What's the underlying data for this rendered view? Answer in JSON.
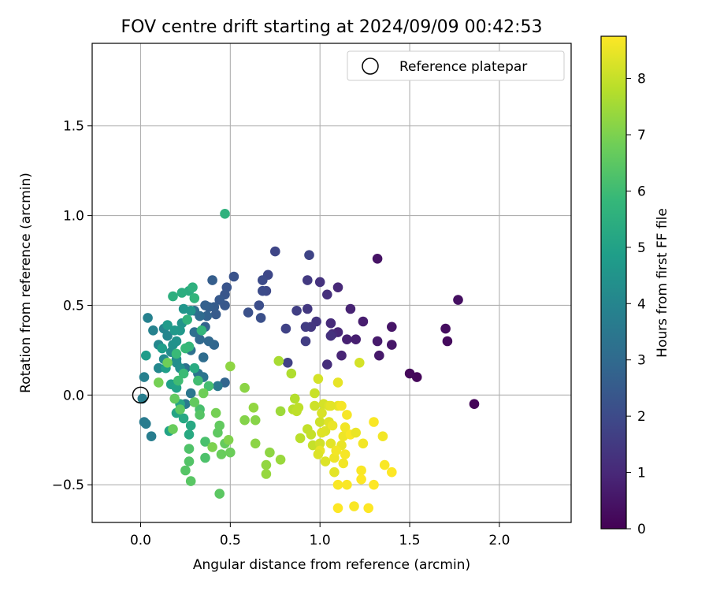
{
  "chart_data": {
    "type": "scatter",
    "title": "FOV centre drift starting at 2024/09/09 00:42:53",
    "xlabel": "Angular distance from reference (arcmin)",
    "ylabel": "Rotation from reference (arcmin)",
    "xlim": [
      -0.27,
      2.4
    ],
    "ylim": [
      -0.71,
      1.96
    ],
    "xticks": [
      "0.0",
      "0.5",
      "1.0",
      "1.5",
      "2.0"
    ],
    "xtick_values": [
      0,
      0.5,
      1.0,
      1.5,
      2.0
    ],
    "yticks": [
      "−0.5",
      "0.0",
      "0.5",
      "1.0",
      "1.5"
    ],
    "ytick_values": [
      -0.5,
      0,
      0.5,
      1.0,
      1.5
    ],
    "grid": true,
    "legend": {
      "label": "Reference platepar",
      "placement": "top-right"
    },
    "reference_point": {
      "x": 0.0,
      "y": 0.0
    },
    "colorbar": {
      "label": "Hours from first FF file",
      "range": [
        0,
        8.75
      ],
      "ticks": [
        "0",
        "1",
        "2",
        "3",
        "4",
        "5",
        "6",
        "7",
        "8"
      ],
      "tick_values": [
        0,
        1,
        2,
        3,
        4,
        5,
        6,
        7,
        8
      ],
      "colormap": [
        "#440154",
        "#482878",
        "#3e4989",
        "#31688e",
        "#26828e",
        "#1f9e89",
        "#35b779",
        "#6ece58",
        "#b5de2b",
        "#fde725"
      ]
    },
    "points": [
      [
        1.86,
        -0.05,
        0.1
      ],
      [
        1.54,
        0.1,
        0.15
      ],
      [
        1.5,
        0.12,
        0.2
      ],
      [
        1.71,
        0.3,
        0.25
      ],
      [
        1.7,
        0.37,
        0.3
      ],
      [
        1.77,
        0.53,
        0.35
      ],
      [
        1.32,
        0.76,
        0.45
      ],
      [
        1.4,
        0.38,
        0.5
      ],
      [
        1.4,
        0.28,
        0.55
      ],
      [
        1.33,
        0.22,
        0.6
      ],
      [
        1.32,
        0.3,
        0.65
      ],
      [
        1.24,
        0.41,
        0.7
      ],
      [
        1.2,
        0.31,
        0.75
      ],
      [
        1.15,
        0.31,
        0.8
      ],
      [
        1.17,
        0.48,
        0.85
      ],
      [
        1.12,
        0.22,
        0.9
      ],
      [
        1.1,
        0.35,
        0.95
      ],
      [
        1.1,
        0.6,
        1.0
      ],
      [
        1.07,
        0.34,
        1.05
      ],
      [
        1.06,
        0.4,
        1.1
      ],
      [
        1.04,
        0.17,
        1.15
      ],
      [
        1.04,
        0.56,
        1.2
      ],
      [
        1.06,
        0.33,
        1.25
      ],
      [
        1.0,
        0.63,
        1.3
      ],
      [
        0.98,
        0.41,
        1.35
      ],
      [
        0.95,
        0.38,
        1.4
      ],
      [
        0.93,
        0.48,
        1.45
      ],
      [
        0.93,
        0.64,
        1.5
      ],
      [
        0.92,
        0.38,
        1.55
      ],
      [
        0.92,
        0.3,
        1.6
      ],
      [
        0.87,
        0.47,
        1.65
      ],
      [
        0.82,
        0.18,
        1.7
      ],
      [
        0.81,
        0.37,
        1.75
      ],
      [
        0.94,
        0.78,
        1.8
      ],
      [
        0.75,
        0.8,
        1.85
      ],
      [
        0.71,
        0.67,
        1.9
      ],
      [
        0.7,
        0.58,
        1.95
      ],
      [
        0.68,
        0.64,
        2.0
      ],
      [
        0.68,
        0.58,
        2.05
      ],
      [
        0.66,
        0.5,
        2.1
      ],
      [
        0.67,
        0.43,
        2.15
      ],
      [
        0.6,
        0.46,
        2.2
      ],
      [
        0.52,
        0.66,
        2.25
      ],
      [
        0.48,
        0.6,
        2.3
      ],
      [
        0.47,
        0.56,
        2.35
      ],
      [
        0.47,
        0.5,
        2.4
      ],
      [
        0.44,
        0.53,
        2.45
      ],
      [
        0.42,
        0.45,
        2.5
      ],
      [
        0.41,
        0.49,
        2.55
      ],
      [
        0.4,
        0.64,
        2.6
      ],
      [
        0.38,
        0.49,
        2.65
      ],
      [
        0.36,
        0.5,
        2.7
      ],
      [
        0.37,
        0.44,
        2.75
      ],
      [
        0.36,
        0.38,
        2.8
      ],
      [
        0.47,
        0.07,
        2.85
      ],
      [
        0.41,
        0.28,
        2.9
      ],
      [
        0.38,
        0.3,
        2.95
      ],
      [
        0.33,
        0.31,
        3.0
      ],
      [
        0.33,
        0.44,
        3.05
      ],
      [
        0.35,
        0.21,
        3.1
      ],
      [
        0.3,
        0.47,
        3.15
      ],
      [
        0.3,
        0.35,
        3.2
      ],
      [
        0.28,
        0.25,
        3.25
      ],
      [
        0.25,
        0.15,
        3.3
      ],
      [
        0.32,
        0.12,
        3.35
      ],
      [
        0.35,
        0.1,
        3.4
      ],
      [
        0.28,
        0.01,
        3.45
      ],
      [
        0.25,
        -0.05,
        3.5
      ],
      [
        0.43,
        0.05,
        3.55
      ],
      [
        0.02,
        -0.15,
        3.6
      ],
      [
        0.03,
        -0.16,
        3.65
      ],
      [
        0.06,
        -0.23,
        3.7
      ],
      [
        0.01,
        -0.02,
        3.75
      ],
      [
        0.02,
        0.1,
        3.8
      ],
      [
        0.04,
        0.43,
        3.85
      ],
      [
        0.07,
        0.36,
        3.9
      ],
      [
        0.13,
        0.37,
        3.95
      ],
      [
        0.15,
        0.33,
        4.0
      ],
      [
        0.1,
        0.28,
        4.05
      ],
      [
        0.1,
        0.15,
        4.1
      ],
      [
        0.13,
        0.2,
        4.15
      ],
      [
        0.17,
        0.24,
        4.2
      ],
      [
        0.2,
        0.2,
        4.25
      ],
      [
        0.2,
        0.18,
        4.3
      ],
      [
        0.22,
        0.15,
        4.35
      ],
      [
        0.18,
        0.28,
        4.4
      ],
      [
        0.2,
        0.3,
        4.45
      ],
      [
        0.23,
        0.4,
        4.5
      ],
      [
        0.24,
        0.48,
        4.55
      ],
      [
        0.28,
        0.47,
        4.6
      ],
      [
        0.22,
        0.36,
        4.65
      ],
      [
        0.19,
        0.36,
        4.7
      ],
      [
        0.15,
        0.39,
        4.75
      ],
      [
        0.03,
        0.22,
        4.8
      ],
      [
        0.12,
        0.26,
        4.85
      ],
      [
        0.14,
        0.15,
        4.9
      ],
      [
        0.17,
        0.06,
        4.95
      ],
      [
        0.2,
        0.04,
        5.0
      ],
      [
        0.16,
        -0.2,
        5.05
      ],
      [
        0.2,
        -0.1,
        5.1
      ],
      [
        0.22,
        -0.05,
        5.15
      ],
      [
        0.24,
        -0.13,
        5.2
      ],
      [
        0.28,
        -0.17,
        5.25
      ],
      [
        0.27,
        -0.22,
        5.3
      ],
      [
        0.3,
        0.15,
        5.35
      ],
      [
        0.27,
        0.58,
        5.4
      ],
      [
        0.23,
        0.57,
        5.45
      ],
      [
        0.18,
        0.55,
        5.5
      ],
      [
        0.47,
        1.01,
        5.6
      ],
      [
        0.29,
        0.6,
        5.55
      ],
      [
        0.26,
        0.42,
        5.65
      ],
      [
        0.3,
        0.54,
        5.7
      ],
      [
        0.34,
        0.36,
        5.75
      ],
      [
        0.27,
        0.27,
        5.8
      ],
      [
        0.25,
        0.26,
        5.85
      ],
      [
        0.2,
        0.23,
        5.9
      ],
      [
        0.24,
        0.12,
        5.95
      ],
      [
        0.21,
        0.08,
        6.0
      ],
      [
        0.32,
        0.08,
        6.05
      ],
      [
        0.38,
        0.05,
        6.1
      ],
      [
        0.33,
        -0.08,
        6.15
      ],
      [
        0.36,
        -0.26,
        6.2
      ],
      [
        0.36,
        -0.35,
        6.25
      ],
      [
        0.27,
        -0.3,
        6.3
      ],
      [
        0.27,
        -0.37,
        6.35
      ],
      [
        0.25,
        -0.42,
        6.4
      ],
      [
        0.28,
        -0.48,
        6.45
      ],
      [
        0.44,
        -0.55,
        6.5
      ],
      [
        0.43,
        -0.21,
        6.55
      ],
      [
        0.44,
        -0.17,
        6.6
      ],
      [
        0.47,
        -0.27,
        6.65
      ],
      [
        0.45,
        -0.33,
        6.7
      ],
      [
        0.5,
        -0.32,
        6.75
      ],
      [
        0.22,
        -0.08,
        6.5
      ],
      [
        0.19,
        -0.02,
        6.6
      ],
      [
        0.18,
        -0.19,
        6.7
      ],
      [
        0.33,
        -0.11,
        6.4
      ],
      [
        0.3,
        -0.04,
        6.6
      ],
      [
        0.35,
        0.01,
        6.8
      ],
      [
        0.1,
        0.07,
        6.9
      ],
      [
        0.15,
        0.18,
        6.8
      ],
      [
        0.42,
        -0.1,
        6.9
      ],
      [
        0.4,
        -0.29,
        7.0
      ],
      [
        0.49,
        -0.25,
        7.05
      ],
      [
        0.58,
        -0.14,
        7.1
      ],
      [
        0.64,
        -0.14,
        7.15
      ],
      [
        0.64,
        -0.27,
        7.2
      ],
      [
        0.72,
        -0.32,
        7.25
      ],
      [
        0.7,
        -0.39,
        7.3
      ],
      [
        0.7,
        -0.44,
        7.35
      ],
      [
        0.78,
        -0.36,
        7.4
      ],
      [
        0.63,
        -0.07,
        7.3
      ],
      [
        0.58,
        0.04,
        7.2
      ],
      [
        0.5,
        0.16,
        7.25
      ],
      [
        0.78,
        -0.09,
        7.45
      ],
      [
        0.77,
        0.19,
        7.6
      ],
      [
        0.84,
        0.12,
        7.7
      ],
      [
        0.86,
        -0.02,
        7.75
      ],
      [
        0.85,
        -0.08,
        7.8
      ],
      [
        0.89,
        -0.24,
        7.85
      ],
      [
        0.87,
        -0.09,
        7.9
      ],
      [
        0.93,
        -0.19,
        7.95
      ],
      [
        0.95,
        -0.22,
        8.0
      ],
      [
        0.96,
        -0.28,
        8.0
      ],
      [
        0.97,
        0.01,
        8.05
      ],
      [
        0.97,
        -0.06,
        8.1
      ],
      [
        1.0,
        -0.15,
        8.1
      ],
      [
        1.0,
        -0.27,
        8.15
      ],
      [
        0.99,
        0.09,
        8.2
      ],
      [
        1.02,
        -0.05,
        8.2
      ],
      [
        1.01,
        -0.1,
        8.25
      ],
      [
        1.03,
        -0.2,
        8.3
      ],
      [
        1.03,
        -0.37,
        8.3
      ],
      [
        1.05,
        -0.15,
        8.35
      ],
      [
        1.06,
        -0.27,
        8.4
      ],
      [
        1.08,
        -0.43,
        8.4
      ],
      [
        1.1,
        0.07,
        8.45
      ],
      [
        1.1,
        -0.06,
        8.5
      ],
      [
        1.12,
        -0.28,
        8.5
      ],
      [
        1.08,
        -0.35,
        8.55
      ],
      [
        1.13,
        -0.23,
        8.55
      ],
      [
        1.14,
        -0.18,
        8.6
      ],
      [
        1.13,
        -0.38,
        8.6
      ],
      [
        1.15,
        -0.11,
        8.65
      ],
      [
        1.12,
        -0.06,
        8.65
      ],
      [
        1.1,
        -0.5,
        8.7
      ],
      [
        1.15,
        -0.5,
        8.7
      ],
      [
        1.17,
        -0.22,
        8.7
      ],
      [
        1.2,
        -0.21,
        8.5
      ],
      [
        1.22,
        0.18,
        8.2
      ],
      [
        1.24,
        -0.27,
        8.6
      ],
      [
        1.23,
        -0.42,
        8.7
      ],
      [
        1.23,
        -0.47,
        8.75
      ],
      [
        1.27,
        -0.63,
        8.75
      ],
      [
        1.19,
        -0.62,
        8.7
      ],
      [
        1.1,
        -0.63,
        8.75
      ],
      [
        1.3,
        -0.15,
        8.7
      ],
      [
        1.3,
        -0.5,
        8.75
      ],
      [
        1.35,
        -0.23,
        8.6
      ],
      [
        1.36,
        -0.39,
        8.7
      ],
      [
        1.4,
        -0.43,
        8.75
      ],
      [
        1.05,
        -0.06,
        8.3
      ],
      [
        1.07,
        -0.17,
        8.5
      ],
      [
        1.09,
        -0.31,
        8.6
      ],
      [
        1.0,
        -0.31,
        8.45
      ],
      [
        0.88,
        -0.07,
        7.9
      ],
      [
        0.99,
        -0.33,
        8.3
      ],
      [
        1.01,
        -0.21,
        8.35
      ],
      [
        1.06,
        -0.06,
        8.4
      ],
      [
        1.14,
        -0.33,
        8.65
      ]
    ]
  }
}
